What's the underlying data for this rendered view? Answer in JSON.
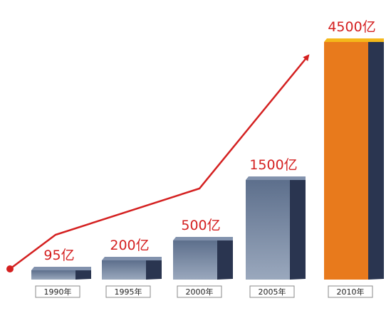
{
  "chart_data": {
    "type": "bar",
    "categories": [
      "1990年",
      "1995年",
      "2000年",
      "2005年",
      "2010年"
    ],
    "values": [
      95,
      200,
      500,
      1500,
      4500
    ],
    "value_labels": [
      "95亿",
      "200亿",
      "500亿",
      "1500亿",
      "4500亿"
    ],
    "unit": "亿",
    "title": "",
    "xlabel": "",
    "ylabel": "",
    "grid": false,
    "legend": "none",
    "highlight_index": 4
  },
  "colors": {
    "bar_front_top": "#5d6f8c",
    "bar_front_bottom": "#9aa8bd",
    "bar_side": "#2a3550",
    "bar_top": "#8292ad",
    "highlight_front": "#e87a1c",
    "highlight_side": "#2a3550",
    "highlight_top": "#f5b81a",
    "arrow": "#d42020",
    "label_text": "#d42020",
    "year_box_border": "#888888"
  }
}
